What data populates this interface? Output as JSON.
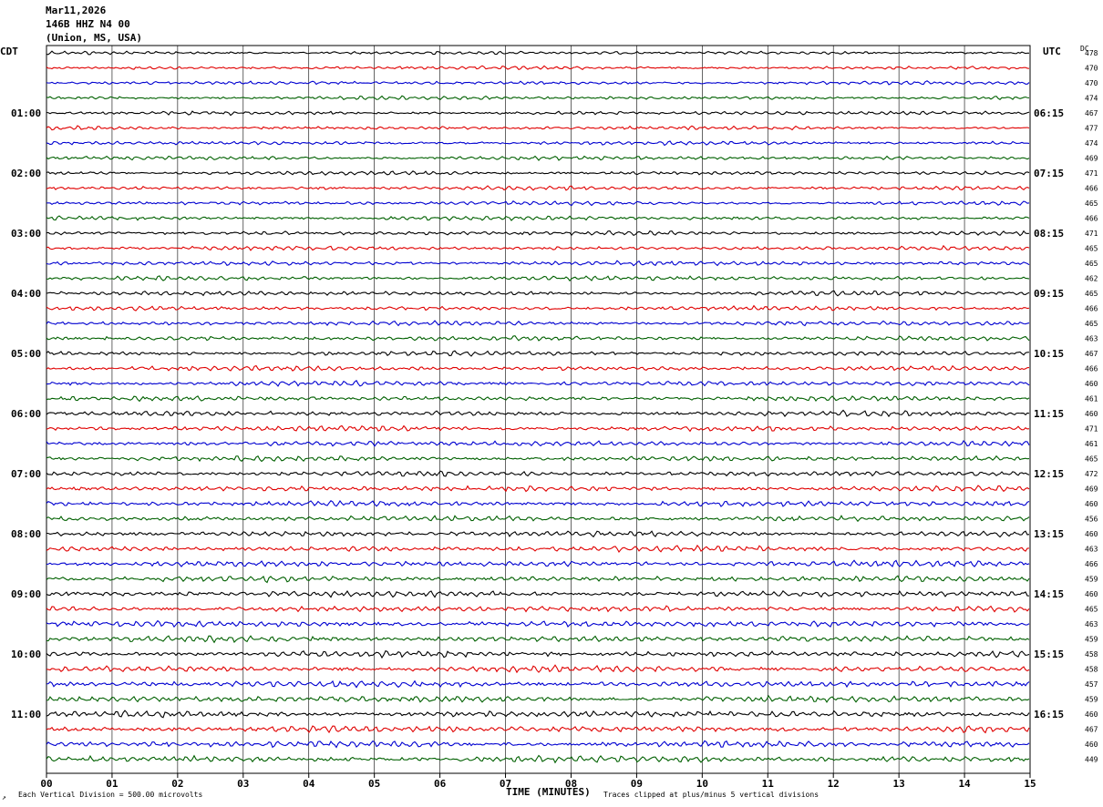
{
  "header": {
    "date": "Mar11,2026",
    "station": "146B HHZ N4 00",
    "location": "(Union, MS, USA)"
  },
  "left_zone": "CDT",
  "right_zone": "UTC",
  "dc_label": "DC",
  "footer": {
    "scale_note": "Each Vertical Division =  500.00 microvolts",
    "clip_note": "Traces clipped at plus/minus 5 vertical divisions",
    "corner_mark": "↗"
  },
  "colors": {
    "trace_cycle": [
      "#000000",
      "#e00000",
      "#0000d0",
      "#006000"
    ],
    "grid": "#000000"
  },
  "chart_data": {
    "type": "line",
    "xlabel": "TIME (MINUTES)",
    "x_ticks": [
      "00",
      "01",
      "02",
      "03",
      "04",
      "05",
      "06",
      "07",
      "08",
      "09",
      "10",
      "11",
      "12",
      "13",
      "14",
      "15"
    ],
    "xlim": [
      0,
      15
    ],
    "left_hour_labels": [
      "01:00",
      "02:00",
      "03:00",
      "04:00",
      "05:00",
      "06:00",
      "07:00",
      "08:00",
      "09:00",
      "10:00",
      "11:00"
    ],
    "right_hour_labels": [
      "06:15",
      "07:15",
      "08:15",
      "09:15",
      "10:15",
      "11:15",
      "12:15",
      "13:15",
      "14:15",
      "15:15",
      "16:15"
    ],
    "dc_offsets": [
      478,
      470,
      470,
      474,
      467,
      477,
      474,
      469,
      471,
      466,
      465,
      466,
      471,
      465,
      465,
      462,
      465,
      466,
      465,
      463,
      467,
      466,
      460,
      461,
      460,
      471,
      461,
      465,
      472,
      469,
      460,
      456,
      460,
      463,
      466,
      459,
      460,
      465,
      463,
      459,
      458,
      458,
      457,
      459,
      460,
      467,
      460,
      449
    ],
    "line_count": 48,
    "minutes_per_line": 15,
    "lines_per_hour": 4
  }
}
